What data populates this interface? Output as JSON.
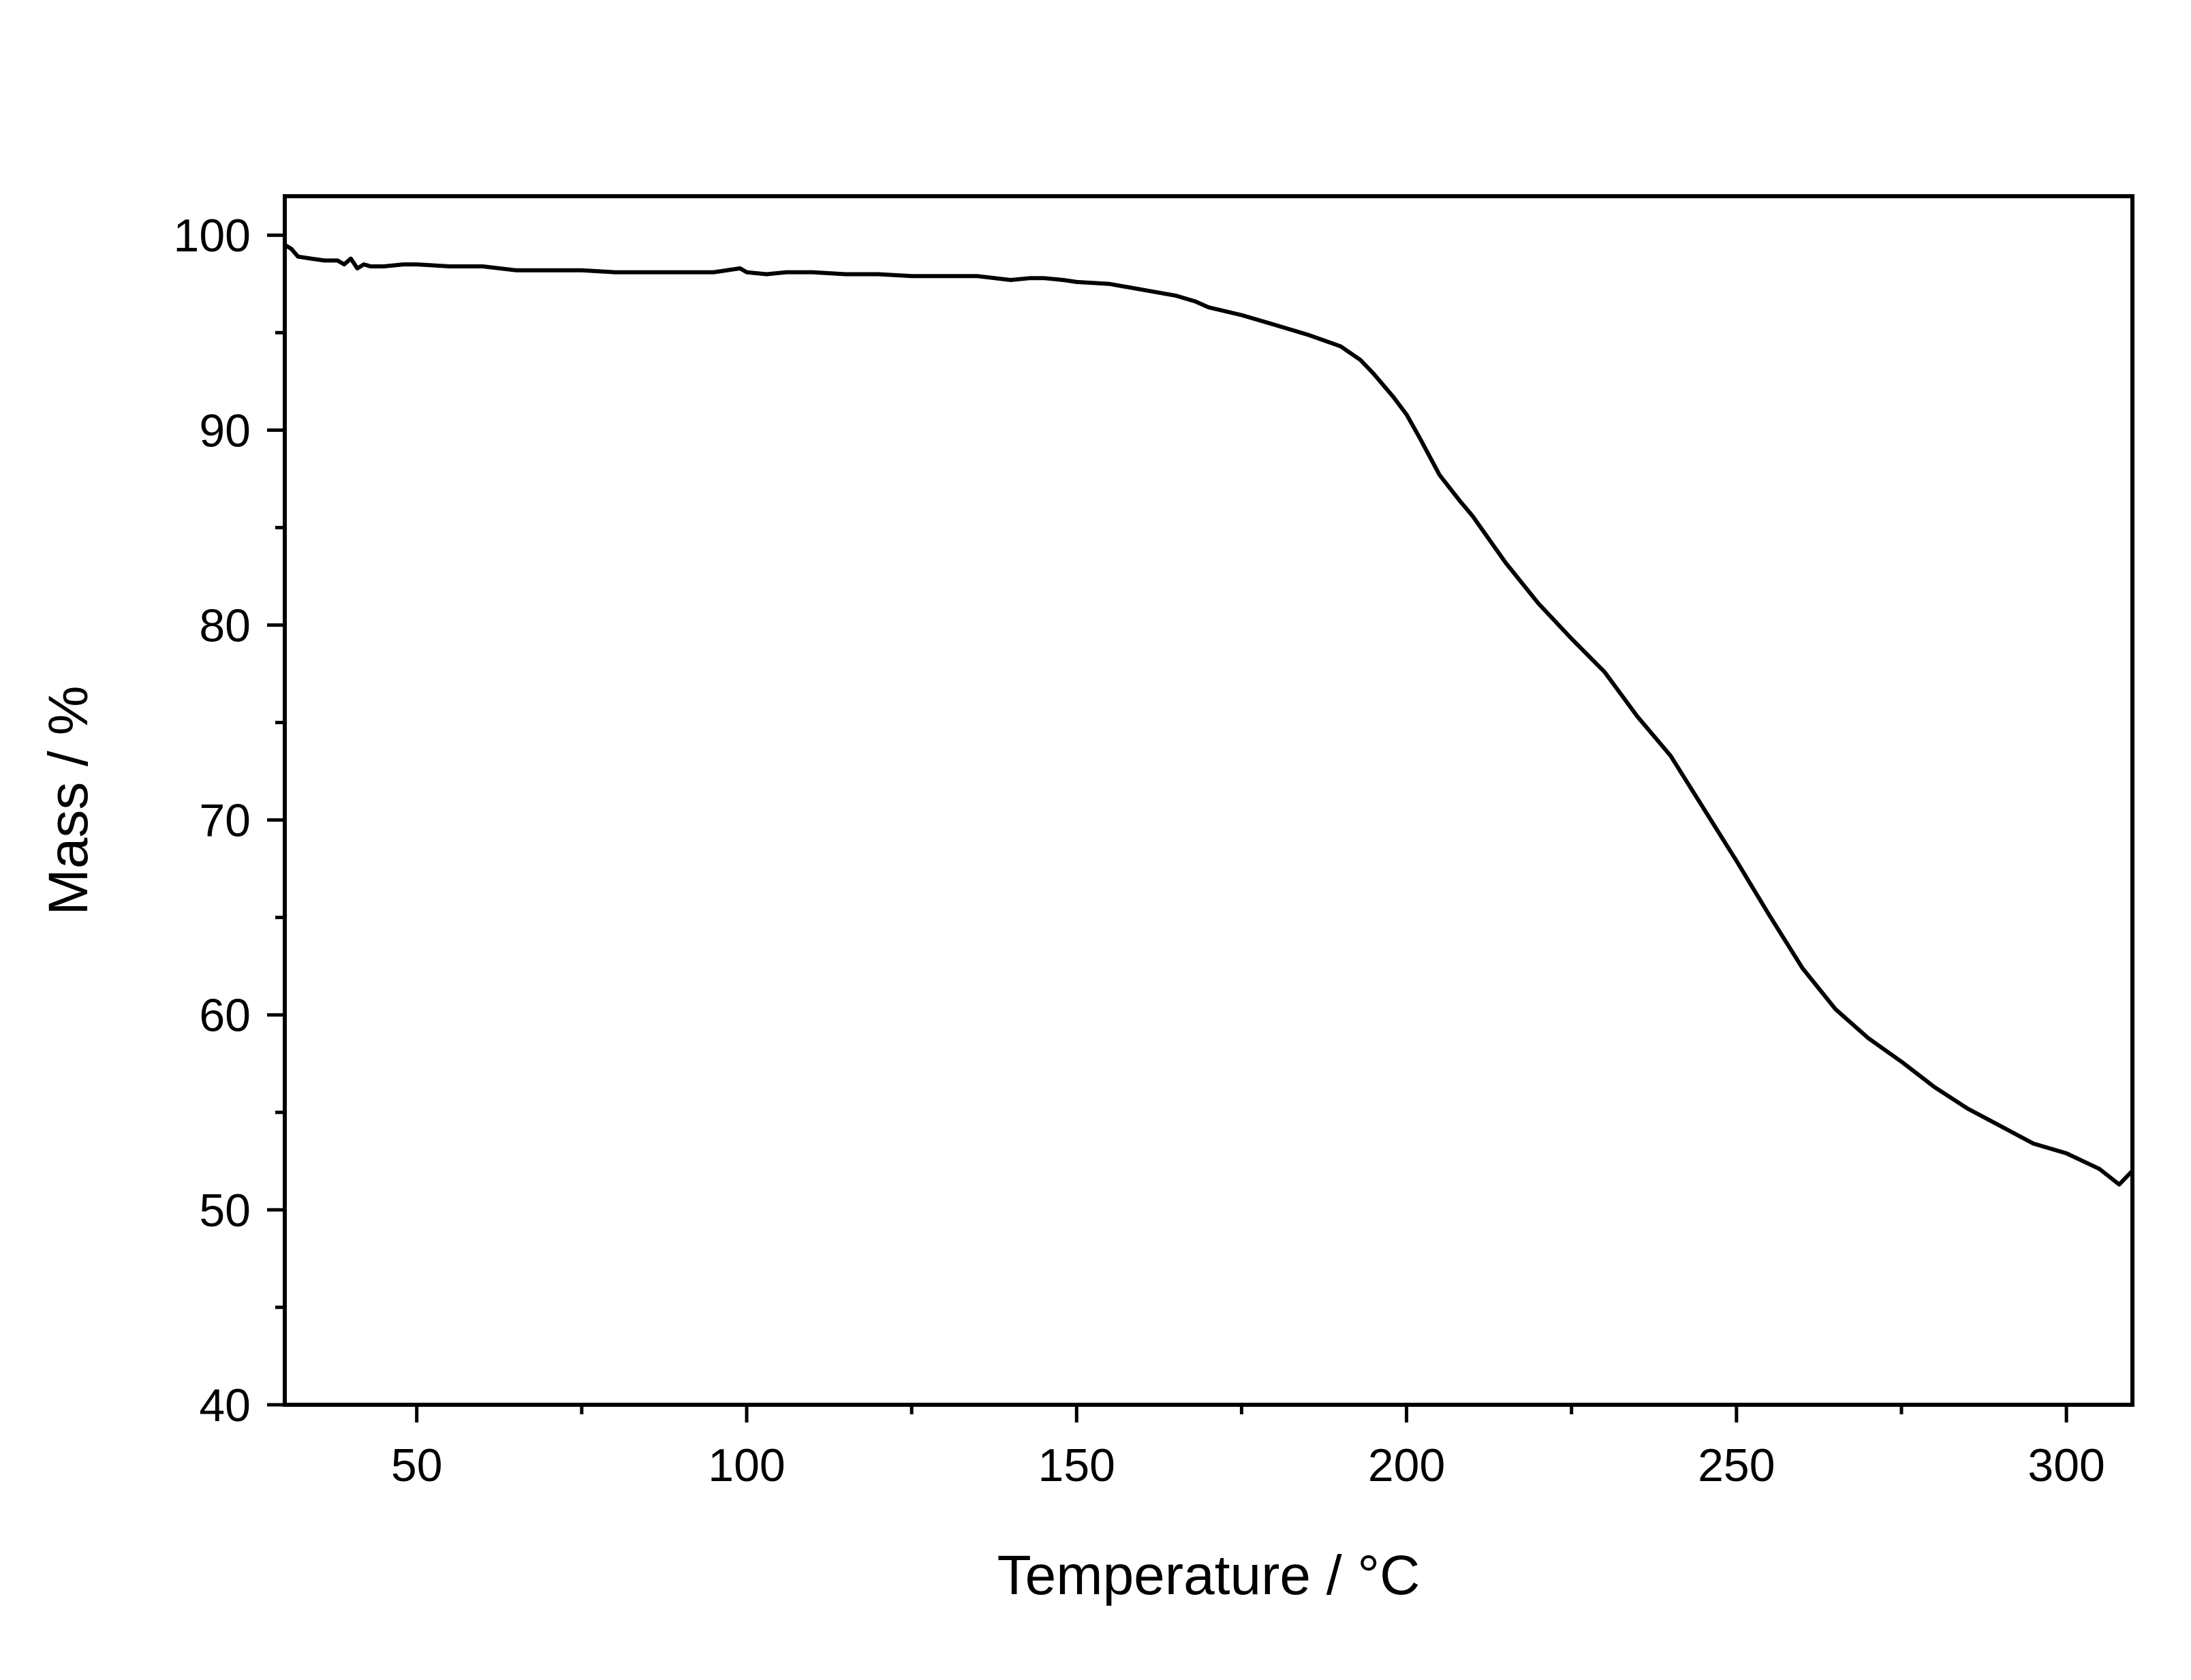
{
  "chart_data": {
    "type": "line",
    "title": "",
    "xlabel": "Temperature / °C",
    "ylabel": "Mass / %",
    "xlim": [
      30,
      310
    ],
    "ylim": [
      40,
      102
    ],
    "x_ticks": [
      50,
      100,
      150,
      200,
      250,
      300
    ],
    "x_tick_labels": [
      "50",
      "100",
      "150",
      "200",
      "250",
      "300"
    ],
    "x_minor_ticks": [
      75,
      125,
      175,
      225,
      275
    ],
    "y_ticks": [
      40,
      50,
      60,
      70,
      80,
      90,
      100
    ],
    "y_tick_labels": [
      "40",
      "50",
      "60",
      "70",
      "80",
      "90",
      "100"
    ],
    "y_minor_ticks": [
      45,
      55,
      65,
      75,
      85,
      95
    ],
    "grid": false,
    "legend": "none",
    "line_color": "#000000",
    "series": [
      {
        "x": [
          30,
          31,
          32,
          34,
          36,
          38,
          39,
          40,
          41,
          42,
          43,
          45,
          48,
          50,
          55,
          60,
          65,
          70,
          75,
          80,
          85,
          90,
          95,
          99,
          100,
          103,
          106,
          110,
          115,
          120,
          125,
          128,
          130,
          135,
          140,
          143,
          145,
          148,
          150,
          155,
          160,
          165,
          168,
          170,
          175,
          180,
          185,
          190,
          193,
          195,
          198,
          200,
          202,
          205,
          208,
          210,
          215,
          220,
          225,
          230,
          235,
          240,
          245,
          250,
          255,
          260,
          265,
          270,
          275,
          280,
          285,
          290,
          295,
          300,
          305,
          308,
          310
        ],
        "y": [
          99.5,
          99.3,
          98.9,
          98.8,
          98.7,
          98.7,
          98.5,
          98.8,
          98.3,
          98.5,
          98.4,
          98.4,
          98.5,
          98.5,
          98.4,
          98.4,
          98.2,
          98.2,
          98.2,
          98.1,
          98.1,
          98.1,
          98.1,
          98.3,
          98.1,
          98.0,
          98.1,
          98.1,
          98.0,
          98.0,
          97.9,
          97.9,
          97.9,
          97.9,
          97.7,
          97.8,
          97.8,
          97.7,
          97.6,
          97.5,
          97.2,
          96.9,
          96.6,
          96.3,
          95.9,
          95.4,
          94.9,
          94.3,
          93.6,
          92.9,
          91.7,
          90.8,
          89.6,
          87.7,
          86.4,
          85.6,
          83.2,
          81.1,
          79.3,
          77.6,
          75.3,
          73.3,
          70.6,
          67.9,
          65.1,
          62.4,
          60.3,
          58.8,
          57.6,
          56.3,
          55.2,
          54.3,
          53.4,
          52.9,
          52.1,
          51.3,
          52.0
        ]
      }
    ]
  }
}
